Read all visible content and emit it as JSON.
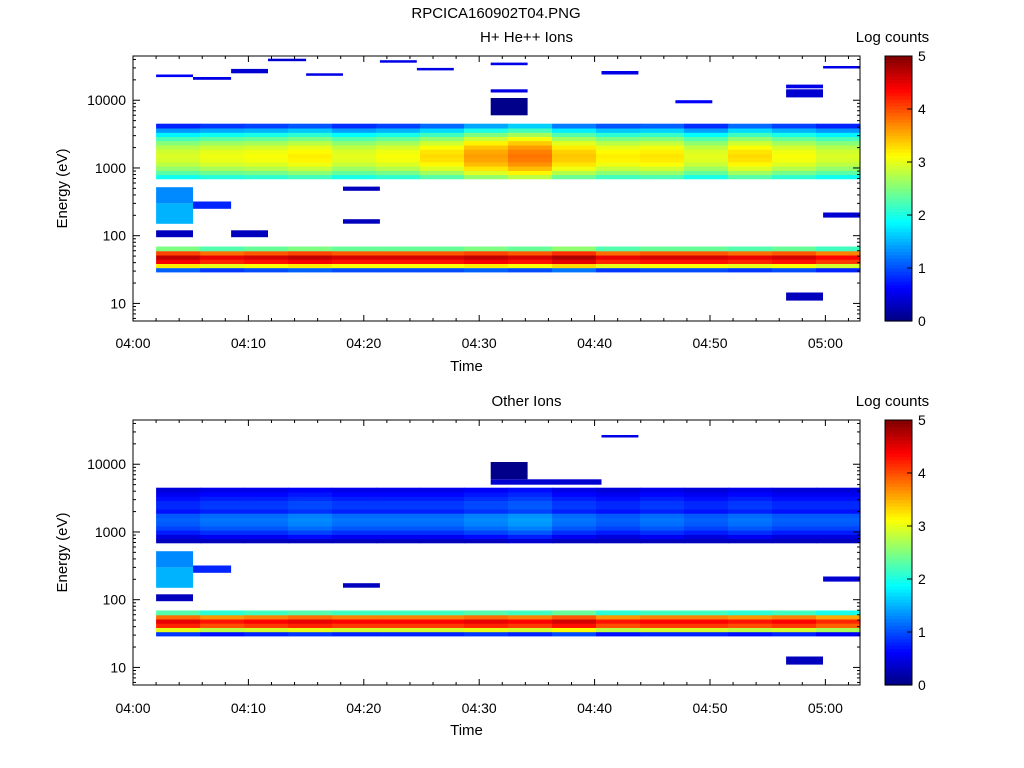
{
  "figure_title": "RPCICA160902T04.PNG",
  "chart_data": [
    {
      "type": "heatmap",
      "title": "H+ He++ Ions",
      "xlabel": "Time",
      "ylabel": "Energy (eV)",
      "colorbar_label": "Log counts",
      "x_ticks": [
        "04:00",
        "04:10",
        "04:20",
        "04:30",
        "04:40",
        "04:50",
        "05:00"
      ],
      "x_range_minutes": [
        0,
        63
      ],
      "y_ticks": [
        "10",
        "100",
        "1000",
        "10000"
      ],
      "y_range": [
        5.5,
        45000
      ],
      "y_scale": "log",
      "colorbar_ticks": [
        "0",
        "1",
        "2",
        "3",
        "4",
        "5"
      ],
      "colorbar_range": [
        0,
        5
      ],
      "grid": false,
      "core_band_peak": [
        2.95,
        3.05,
        3.1,
        3.2,
        3.0,
        3.1,
        3.3,
        3.6,
        3.8,
        3.4,
        3.2,
        3.25,
        3.0,
        3.3,
        3.1,
        2.95
      ],
      "low_band_peak": [
        4.7,
        4.5,
        4.6,
        4.7,
        4.6,
        4.6,
        4.6,
        4.7,
        4.6,
        4.8,
        4.5,
        4.6,
        4.6,
        4.5,
        4.6,
        4.4
      ],
      "sparse_events": [
        {
          "t0": 2,
          "t1": 5.2,
          "e0": 22000,
          "e1": 24000,
          "v": 0.6
        },
        {
          "t0": 5.2,
          "t1": 8.5,
          "e0": 20000,
          "e1": 22000,
          "v": 0.5
        },
        {
          "t0": 8.5,
          "t1": 11.7,
          "e0": 25000,
          "e1": 29000,
          "v": 0.4
        },
        {
          "t0": 11.7,
          "t1": 15,
          "e0": 38000,
          "e1": 41000,
          "v": 0.4
        },
        {
          "t0": 15,
          "t1": 18.2,
          "e0": 23000,
          "e1": 25000,
          "v": 0.5
        },
        {
          "t0": 21.4,
          "t1": 24.6,
          "e0": 36000,
          "e1": 39000,
          "v": 0.5
        },
        {
          "t0": 24.6,
          "t1": 27.8,
          "e0": 28000,
          "e1": 30000,
          "v": 0.5
        },
        {
          "t0": 31,
          "t1": 34.2,
          "e0": 33000,
          "e1": 36000,
          "v": 0.5
        },
        {
          "t0": 31,
          "t1": 34.2,
          "e0": 13000,
          "e1": 14500,
          "v": 0.5
        },
        {
          "t0": 40.6,
          "t1": 43.8,
          "e0": 24000,
          "e1": 27000,
          "v": 0.5
        },
        {
          "t0": 47,
          "t1": 50.2,
          "e0": 9000,
          "e1": 10000,
          "v": 0.6
        },
        {
          "t0": 56.6,
          "t1": 59.8,
          "e0": 15000,
          "e1": 17000,
          "v": 0.5
        },
        {
          "t0": 59.8,
          "t1": 63,
          "e0": 30000,
          "e1": 32000,
          "v": 0.5
        },
        {
          "t0": 31,
          "t1": 34.2,
          "e0": 6000,
          "e1": 10800,
          "v": 0.05
        },
        {
          "t0": 56.6,
          "t1": 59.8,
          "e0": 11000,
          "e1": 14500,
          "v": 0.4
        },
        {
          "t0": 2,
          "t1": 5.2,
          "e0": 300,
          "e1": 520,
          "v": 1.3
        },
        {
          "t0": 2,
          "t1": 5.2,
          "e0": 150,
          "e1": 300,
          "v": 1.5
        },
        {
          "t0": 5.2,
          "t1": 8.5,
          "e0": 250,
          "e1": 320,
          "v": 0.8
        },
        {
          "t0": 2,
          "t1": 5.2,
          "e0": 95,
          "e1": 120,
          "v": 0.3
        },
        {
          "t0": 8.5,
          "t1": 11.7,
          "e0": 95,
          "e1": 120,
          "v": 0.3
        },
        {
          "t0": 18.2,
          "t1": 21.4,
          "e0": 150,
          "e1": 175,
          "v": 0.3
        },
        {
          "t0": 18.2,
          "t1": 21.4,
          "e0": 460,
          "e1": 530,
          "v": 0.3
        },
        {
          "t0": 56.6,
          "t1": 59.8,
          "e0": 11,
          "e1": 14.5,
          "v": 0.3
        },
        {
          "t0": 59.8,
          "t1": 63,
          "e0": 185,
          "e1": 220,
          "v": 0.4
        }
      ]
    },
    {
      "type": "heatmap",
      "title": "Other Ions",
      "xlabel": "Time",
      "ylabel": "Energy (eV)",
      "colorbar_label": "Log counts",
      "x_ticks": [
        "04:00",
        "04:10",
        "04:20",
        "04:30",
        "04:40",
        "04:50",
        "05:00"
      ],
      "x_range_minutes": [
        0,
        63
      ],
      "y_ticks": [
        "10",
        "100",
        "1000",
        "10000"
      ],
      "y_range": [
        5.5,
        45000
      ],
      "y_scale": "log",
      "colorbar_ticks": [
        "0",
        "1",
        "2",
        "3",
        "4",
        "5"
      ],
      "colorbar_range": [
        0,
        5
      ],
      "grid": false,
      "core_band_peak": [
        1.1,
        1.2,
        1.2,
        1.3,
        1.2,
        1.2,
        1.2,
        1.3,
        1.4,
        1.2,
        1.1,
        1.2,
        1.1,
        1.2,
        1.1,
        1.1
      ],
      "low_band_peak": [
        4.5,
        4.3,
        4.4,
        4.5,
        4.4,
        4.4,
        4.4,
        4.5,
        4.4,
        4.6,
        4.3,
        4.4,
        4.4,
        4.3,
        4.4,
        4.2
      ],
      "sparse_events": [
        {
          "t0": 40.6,
          "t1": 43.8,
          "e0": 25000,
          "e1": 27000,
          "v": 0.5
        },
        {
          "t0": 31,
          "t1": 40.6,
          "e0": 5000,
          "e1": 6000,
          "v": 0.4
        },
        {
          "t0": 31,
          "t1": 34.2,
          "e0": 6000,
          "e1": 10800,
          "v": 0.05
        },
        {
          "t0": 2,
          "t1": 5.2,
          "e0": 300,
          "e1": 520,
          "v": 1.3
        },
        {
          "t0": 2,
          "t1": 5.2,
          "e0": 150,
          "e1": 300,
          "v": 1.5
        },
        {
          "t0": 5.2,
          "t1": 8.5,
          "e0": 250,
          "e1": 320,
          "v": 0.8
        },
        {
          "t0": 2,
          "t1": 5.2,
          "e0": 95,
          "e1": 120,
          "v": 0.3
        },
        {
          "t0": 18.2,
          "t1": 21.4,
          "e0": 150,
          "e1": 175,
          "v": 0.3
        },
        {
          "t0": 56.6,
          "t1": 59.8,
          "e0": 11,
          "e1": 14.5,
          "v": 0.3
        },
        {
          "t0": 59.8,
          "t1": 63,
          "e0": 185,
          "e1": 220,
          "v": 0.4
        }
      ]
    }
  ]
}
